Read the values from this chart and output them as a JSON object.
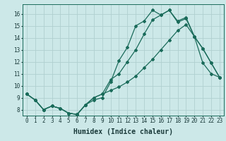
{
  "title": "",
  "xlabel": "Humidex (Indice chaleur)",
  "bg_color": "#cce8e8",
  "grid_color": "#b0d0d0",
  "line_color": "#1a6b5a",
  "xlim": [
    -0.5,
    23.5
  ],
  "ylim": [
    7.5,
    16.8
  ],
  "xticks": [
    0,
    1,
    2,
    3,
    4,
    5,
    6,
    7,
    8,
    9,
    10,
    11,
    12,
    13,
    14,
    15,
    16,
    17,
    18,
    19,
    20,
    21,
    22,
    23
  ],
  "yticks": [
    8,
    9,
    10,
    11,
    12,
    13,
    14,
    15,
    16
  ],
  "line1_x": [
    0,
    1,
    2,
    3,
    4,
    5,
    6,
    7,
    8,
    9,
    10,
    11,
    12,
    13,
    14,
    15,
    16,
    17,
    18,
    19,
    20,
    21,
    22,
    23
  ],
  "line1_y": [
    9.3,
    8.8,
    8.0,
    8.3,
    8.1,
    7.7,
    7.6,
    8.4,
    8.8,
    9.0,
    10.3,
    12.1,
    13.2,
    15.0,
    15.4,
    16.3,
    15.9,
    16.3,
    15.3,
    15.6,
    14.1,
    13.1,
    11.9,
    10.7
  ],
  "line2_x": [
    0,
    1,
    2,
    3,
    4,
    5,
    6,
    7,
    8,
    9,
    10,
    11,
    12,
    13,
    14,
    15,
    16,
    17,
    18,
    19,
    20,
    21,
    22,
    23
  ],
  "line2_y": [
    9.3,
    8.8,
    8.0,
    8.3,
    8.1,
    7.7,
    7.6,
    8.4,
    9.0,
    9.3,
    10.5,
    11.0,
    12.0,
    13.0,
    14.3,
    15.5,
    15.9,
    16.3,
    15.4,
    15.7,
    14.1,
    13.1,
    11.9,
    10.7
  ],
  "line3_x": [
    0,
    1,
    2,
    3,
    4,
    5,
    6,
    7,
    8,
    9,
    10,
    11,
    12,
    13,
    14,
    15,
    16,
    17,
    18,
    19,
    20,
    21,
    22,
    23
  ],
  "line3_y": [
    9.3,
    8.8,
    8.0,
    8.3,
    8.1,
    7.7,
    7.6,
    8.4,
    9.0,
    9.3,
    9.6,
    9.9,
    10.3,
    10.8,
    11.5,
    12.2,
    13.0,
    13.8,
    14.6,
    15.1,
    14.1,
    11.9,
    11.0,
    10.7
  ],
  "marker_size": 2.0,
  "line_width": 0.9,
  "tick_fontsize": 5.5,
  "xlabel_fontsize": 7.0
}
